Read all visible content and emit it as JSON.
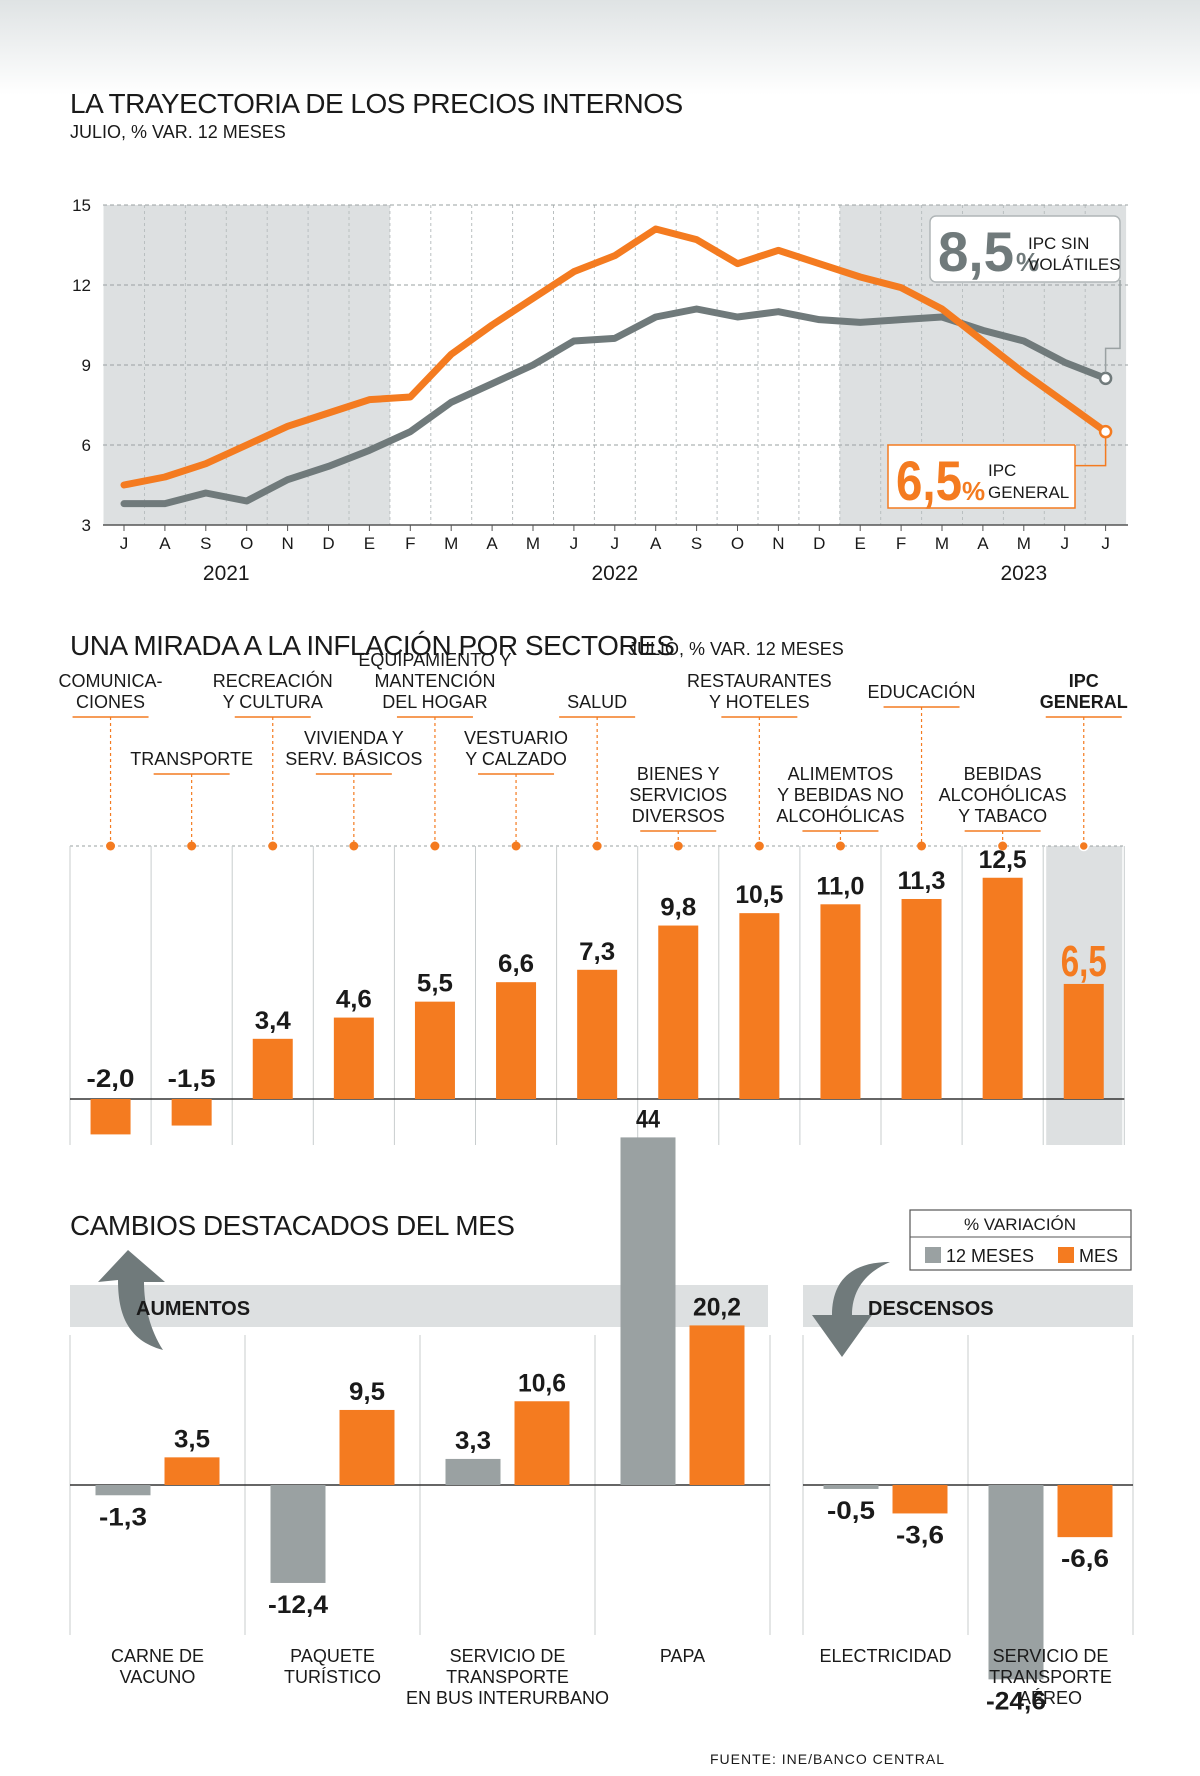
{
  "chart_data": [
    {
      "type": "line",
      "title": "LA TRAYECTORIA DE LOS PRECIOS INTERNOS",
      "subtitle": "JULIO, % VAR. 12 MESES",
      "x": [
        "J",
        "A",
        "S",
        "O",
        "N",
        "D",
        "E",
        "F",
        "M",
        "A",
        "M",
        "J",
        "J",
        "A",
        "S",
        "O",
        "N",
        "D",
        "E",
        "F",
        "M",
        "A",
        "M",
        "J",
        "J"
      ],
      "years": [
        {
          "label": "2021",
          "index": 2.5
        },
        {
          "label": "2022",
          "index": 12
        },
        {
          "label": "2023",
          "index": 22
        }
      ],
      "ylim": [
        3,
        15
      ],
      "yticks": [
        3,
        6,
        9,
        12,
        15
      ],
      "shaded_ranges": [
        [
          0,
          6
        ],
        [
          18,
          24
        ]
      ],
      "series": [
        {
          "name": "IPC GENERAL",
          "color": "#f47b20",
          "values": [
            4.5,
            4.8,
            5.3,
            6.0,
            6.7,
            7.2,
            7.7,
            7.8,
            9.4,
            10.5,
            11.5,
            12.5,
            13.1,
            14.1,
            13.7,
            12.8,
            13.3,
            12.8,
            12.3,
            11.9,
            11.1,
            9.9,
            8.7,
            7.6,
            6.5
          ],
          "callout": {
            "value": "6,5",
            "unit": "%",
            "label1": "IPC",
            "label2": "GENERAL"
          }
        },
        {
          "name": "IPC SIN VOLÁTILES",
          "color": "#707a7b",
          "values": [
            3.8,
            3.8,
            4.2,
            3.9,
            4.7,
            5.2,
            5.8,
            6.5,
            7.6,
            8.3,
            9.0,
            9.9,
            10.0,
            10.8,
            11.1,
            10.8,
            11.0,
            10.7,
            10.6,
            10.7,
            10.8,
            10.3,
            9.9,
            9.1,
            8.5
          ],
          "callout": {
            "value": "8,5",
            "unit": "%",
            "label1": "IPC SIN",
            "label2": "VOLÁTILES"
          }
        }
      ]
    },
    {
      "type": "bar",
      "title": "UNA MIRADA A LA INFLACIÓN POR SECTORES",
      "subtitle": "JULIO, % VAR. 12 MESES",
      "categories": [
        {
          "lines": [
            "COMUNICA-",
            "CIONES"
          ],
          "value": -2.0,
          "label": "-2,0"
        },
        {
          "lines": [
            "TRANSPORTE"
          ],
          "value": -1.5,
          "label": "-1,5"
        },
        {
          "lines": [
            "RECREACIÓN",
            "Y CULTURA"
          ],
          "value": 3.4,
          "label": "3,4"
        },
        {
          "lines": [
            "VIVIENDA Y",
            "SERV. BÁSICOS"
          ],
          "value": 4.6,
          "label": "4,6"
        },
        {
          "lines": [
            "EQUIPAMIENTO Y",
            "MANTENCIÓN",
            "DEL HOGAR"
          ],
          "value": 5.5,
          "label": "5,5"
        },
        {
          "lines": [
            "VESTUARIO",
            "Y CALZADO"
          ],
          "value": 6.6,
          "label": "6,6"
        },
        {
          "lines": [
            "SALUD"
          ],
          "value": 7.3,
          "label": "7,3"
        },
        {
          "lines": [
            "BIENES Y",
            "SERVICIOS",
            "DIVERSOS"
          ],
          "value": 9.8,
          "label": "9,8"
        },
        {
          "lines": [
            "RESTAURANTES",
            "Y HOTELES"
          ],
          "value": 10.5,
          "label": "10,5"
        },
        {
          "lines": [
            "ALIMEMTOS",
            "Y BEBIDAS NO",
            "ALCOHÓLICAS"
          ],
          "value": 11.0,
          "label": "11,0"
        },
        {
          "lines": [
            "EDUCACIÓN"
          ],
          "value": 11.3,
          "label": "11,3"
        },
        {
          "lines": [
            "BEBIDAS",
            "ALCOHÓLICAS",
            "Y TABACO"
          ],
          "value": 12.5,
          "label": "12,5"
        },
        {
          "lines": [
            "IPC",
            "GENERAL"
          ],
          "value": 6.5,
          "label": "6,5",
          "highlight": true
        }
      ]
    },
    {
      "type": "bar",
      "title": "CAMBIOS DESTACADOS DEL MES",
      "legend": {
        "title": "% VARIACIÓN",
        "items": [
          {
            "name": "12 MESES",
            "color": "#9aa1a2"
          },
          {
            "name": "MES",
            "color": "#f47b20"
          }
        ]
      },
      "groups": [
        {
          "name": "AUMENTOS",
          "items": [
            {
              "lines": [
                "CARNE DE",
                "VACUNO"
              ],
              "m12": -1.3,
              "m12_label": "-1,3",
              "mes": 3.5,
              "mes_label": "3,5"
            },
            {
              "lines": [
                "PAQUETE",
                "TURÍSTICO"
              ],
              "m12": -12.4,
              "m12_label": "-12,4",
              "mes": 9.5,
              "mes_label": "9,5"
            },
            {
              "lines": [
                "SERVICIO DE",
                "TRANSPORTE",
                "EN BUS INTERURBANO"
              ],
              "m12": 3.3,
              "m12_label": "3,3",
              "mes": 10.6,
              "mes_label": "10,6"
            },
            {
              "lines": [
                "PAPA"
              ],
              "m12": 44,
              "m12_label": "44",
              "mes": 20.2,
              "mes_label": "20,2"
            }
          ]
        },
        {
          "name": "DESCENSOS",
          "items": [
            {
              "lines": [
                "ELECTRICIDAD"
              ],
              "m12": -0.5,
              "m12_label": "-0,5",
              "mes": -3.6,
              "mes_label": "-3,6"
            },
            {
              "lines": [
                "SERVICIO DE",
                "TRANSPORTE",
                "AÉREO"
              ],
              "m12": -24.6,
              "m12_label": "-24,6",
              "mes": -6.6,
              "mes_label": "-6,6"
            }
          ]
        }
      ]
    }
  ],
  "source": "FUENTE: INE/BANCO CENTRAL",
  "colors": {
    "orange": "#f47b20",
    "dark_gray": "#707a7b",
    "light_gray": "#9aa1a2",
    "panel": "#dde0e1"
  }
}
